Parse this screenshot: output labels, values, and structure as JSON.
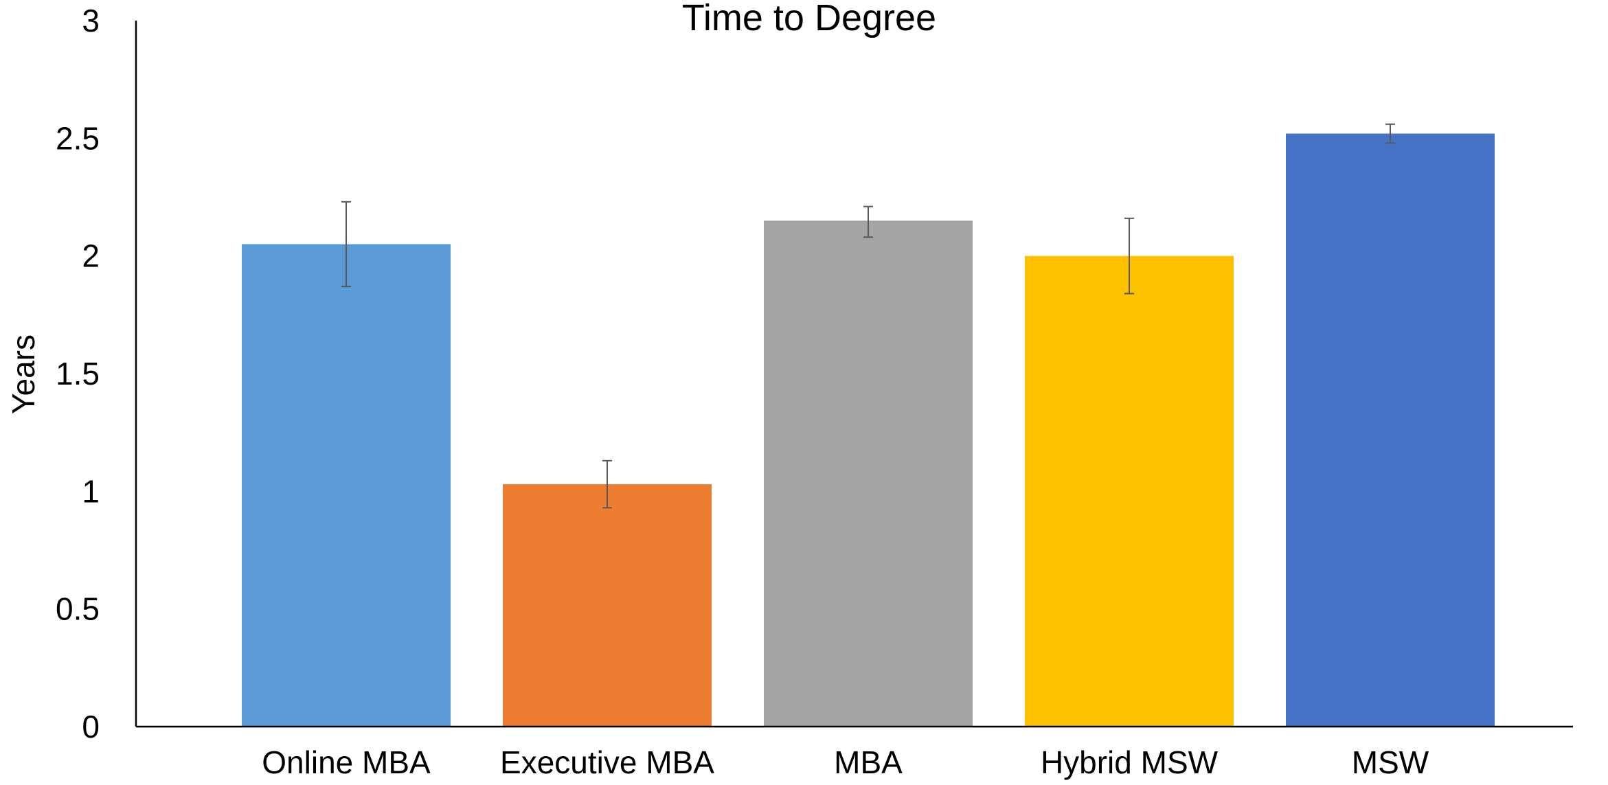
{
  "chart_data": {
    "type": "bar",
    "title": "Time to Degree",
    "xlabel": "",
    "ylabel": "Years",
    "ylim": [
      0,
      3
    ],
    "yticks": [
      "0",
      "0.5",
      "1",
      "1.5",
      "2",
      "2.5",
      "3"
    ],
    "grid": false,
    "legend": "none",
    "categories": [
      "Online MBA",
      "Executive MBA",
      "MBA",
      "Hybrid MSW",
      "MSW"
    ],
    "values": [
      2.05,
      1.03,
      2.15,
      2.0,
      2.52
    ],
    "error_low": [
      1.87,
      0.93,
      2.08,
      1.84,
      2.48
    ],
    "error_high": [
      2.23,
      1.13,
      2.21,
      2.16,
      2.56
    ],
    "colors": [
      "#5B9BD5",
      "#ED7D31",
      "#A5A5A5",
      "#FFC000",
      "#4472C4"
    ],
    "error_bar_color": "#595959"
  }
}
